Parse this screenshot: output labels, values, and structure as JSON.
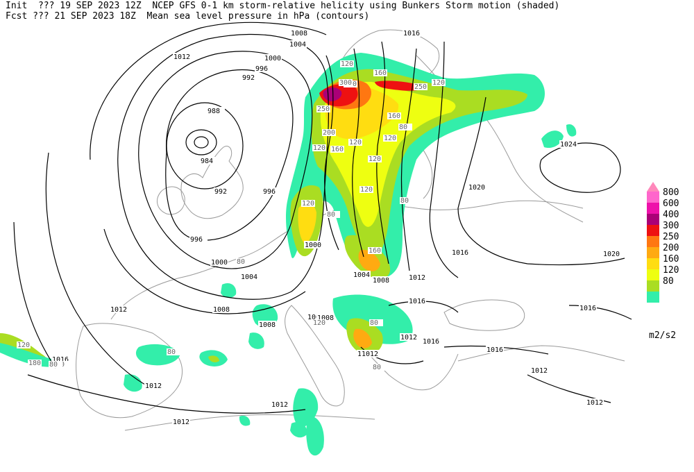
{
  "header": {
    "line1": "Init  ??? 19 SEP 2023 12Z  NCEP GFS 0-1 km storm-relative helicity using Bunkers Storm motion (shaded)",
    "line2": "Fcst ??? 21 SEP 2023 18Z  Mean sea level pressure in hPa (contours)"
  },
  "colorbar": {
    "units": "m2/s2",
    "levels": [
      {
        "label": "800",
        "color": "#ff66cc"
      },
      {
        "label": "600",
        "color": "#ee11aa"
      },
      {
        "label": "400",
        "color": "#aa0077"
      },
      {
        "label": "300",
        "color": "#ee1111"
      },
      {
        "label": "250",
        "color": "#ff7711"
      },
      {
        "label": "200",
        "color": "#ffaa11"
      },
      {
        "label": "160",
        "color": "#ffdd11"
      },
      {
        "label": "120",
        "color": "#eeff11"
      },
      {
        "label": "80",
        "color": "#aadd22"
      },
      {
        "label": "",
        "color": "#33eeaa"
      }
    ]
  },
  "isobar_labels": [
    "1008",
    "1004",
    "1016",
    "1012",
    "1000",
    "996",
    "992",
    "988",
    "984",
    "992",
    "996",
    "996",
    "1000",
    "1004",
    "1008",
    "1008",
    "1008",
    "1012",
    "1012",
    "1016",
    "1012",
    "1012",
    "1016",
    "1020",
    "1024",
    "1020",
    "1016",
    "1016",
    "1012",
    "1012",
    "1016",
    "1016",
    "1008",
    "1012",
    "1012",
    "1012",
    "1000",
    "1004",
    "1008",
    "1012",
    "1012"
  ],
  "helicity_labels": [
    "120",
    "200",
    "160",
    "250",
    "120",
    "250",
    "300",
    "120",
    "160",
    "200",
    "160",
    "120",
    "120",
    "120",
    "80",
    "120",
    "160",
    "80",
    "120",
    "80",
    "120",
    "180",
    "80",
    "80",
    "80",
    "80",
    "80",
    "120",
    "80"
  ],
  "style": {
    "coast_color": "#9a9a9a",
    "isobar_color": "#000000",
    "label_box": "#ffffff"
  }
}
